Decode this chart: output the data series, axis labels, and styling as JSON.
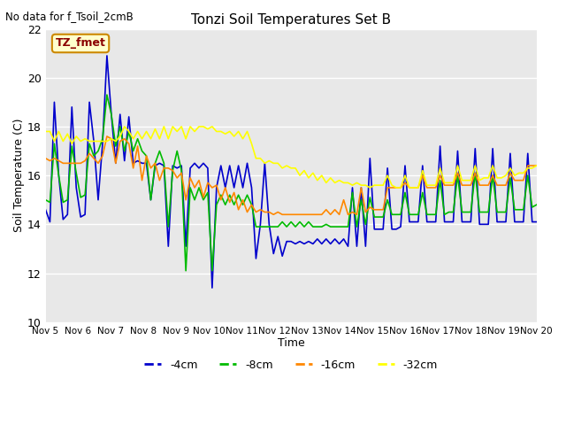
{
  "title": "Tonzi Soil Temperatures Set B",
  "subtitle": "No data for f_Tsoil_2cmB",
  "xlabel": "Time",
  "ylabel": "Soil Temperature (C)",
  "ylim": [
    10,
    22
  ],
  "yticks": [
    10,
    12,
    14,
    16,
    18,
    20,
    22
  ],
  "xtick_labels": [
    "Nov 5",
    "Nov 6",
    "Nov 7",
    "Nov 8",
    "Nov 9",
    "Nov 10",
    "Nov 11",
    "Nov 12",
    "Nov 13",
    "Nov 14",
    "Nov 15",
    "Nov 16",
    "Nov 17",
    "Nov 18",
    "Nov 19",
    "Nov 20"
  ],
  "legend_label": "TZ_fmet",
  "bg_color": "#e8e8e8",
  "plot_bg_color": "#e8e8e8",
  "line_colors": {
    "-4cm": "#0000cc",
    "-8cm": "#00bb00",
    "-16cm": "#ff8800",
    "-32cm": "#ffff00"
  },
  "series": {
    "-4cm": [
      14.6,
      14.1,
      19.0,
      16.0,
      14.2,
      14.4,
      18.8,
      15.5,
      14.3,
      14.4,
      19.0,
      17.4,
      15.0,
      17.3,
      20.9,
      18.5,
      16.5,
      18.5,
      16.6,
      18.4,
      16.5,
      16.6,
      16.5,
      16.5,
      15.0,
      16.4,
      16.5,
      16.4,
      13.1,
      16.4,
      16.3,
      16.4,
      13.1,
      16.3,
      16.5,
      16.3,
      16.5,
      16.3,
      11.4,
      15.5,
      16.4,
      15.5,
      16.4,
      15.5,
      16.4,
      15.5,
      16.5,
      15.5,
      12.6,
      14.0,
      16.5,
      14.0,
      12.8,
      13.5,
      12.7,
      13.3,
      13.3,
      13.2,
      13.3,
      13.2,
      13.3,
      13.2,
      13.4,
      13.2,
      13.4,
      13.2,
      13.4,
      13.2,
      13.4,
      13.1,
      15.5,
      13.1,
      15.5,
      13.1,
      16.7,
      13.8,
      13.8,
      13.8,
      16.3,
      13.8,
      13.8,
      13.9,
      16.4,
      14.1,
      14.1,
      14.1,
      16.4,
      14.1,
      14.1,
      14.1,
      17.2,
      14.1,
      14.1,
      14.1,
      17.0,
      14.1,
      14.1,
      14.1,
      17.1,
      14.0,
      14.0,
      14.0,
      17.1,
      14.1,
      14.1,
      14.1,
      16.9,
      14.1,
      14.1,
      14.1,
      16.9,
      14.1,
      14.1
    ],
    "-8cm": [
      15.0,
      14.9,
      17.3,
      16.0,
      14.9,
      15.0,
      17.2,
      16.1,
      15.1,
      15.2,
      17.3,
      16.8,
      17.0,
      17.5,
      19.3,
      18.5,
      17.2,
      18.0,
      17.0,
      17.8,
      17.0,
      17.5,
      17.0,
      16.8,
      15.0,
      16.5,
      17.0,
      16.5,
      13.9,
      16.2,
      17.0,
      16.2,
      12.1,
      15.5,
      15.0,
      15.5,
      15.0,
      15.3,
      12.1,
      14.8,
      15.2,
      14.8,
      15.2,
      14.8,
      15.2,
      14.8,
      15.2,
      14.8,
      13.9,
      13.9,
      13.9,
      13.9,
      13.9,
      13.9,
      14.1,
      13.9,
      14.1,
      13.9,
      14.1,
      13.9,
      14.1,
      13.9,
      13.9,
      13.9,
      14.0,
      13.9,
      13.9,
      13.9,
      13.9,
      13.9,
      15.3,
      13.9,
      15.0,
      14.0,
      15.1,
      14.3,
      14.3,
      14.3,
      15.0,
      14.4,
      14.4,
      14.4,
      15.3,
      14.4,
      14.4,
      14.4,
      15.3,
      14.4,
      14.4,
      14.4,
      15.8,
      14.4,
      14.5,
      14.5,
      16.0,
      14.5,
      14.5,
      14.5,
      16.1,
      14.5,
      14.5,
      14.5,
      16.0,
      14.5,
      14.5,
      14.5,
      15.9,
      14.6,
      14.6,
      14.6,
      16.0,
      14.7,
      14.8
    ],
    "-16cm": [
      16.7,
      16.6,
      16.7,
      16.6,
      16.5,
      16.5,
      16.5,
      16.5,
      16.5,
      16.6,
      16.9,
      16.7,
      16.5,
      16.8,
      17.6,
      17.5,
      16.5,
      17.4,
      17.5,
      17.3,
      16.3,
      17.2,
      15.8,
      16.8,
      16.3,
      16.5,
      15.8,
      16.3,
      16.3,
      16.2,
      15.9,
      16.1,
      15.0,
      15.9,
      15.5,
      15.8,
      15.1,
      15.7,
      15.5,
      15.6,
      15.0,
      15.5,
      14.9,
      15.3,
      14.6,
      15.0,
      14.5,
      14.8,
      14.5,
      14.6,
      14.5,
      14.5,
      14.4,
      14.5,
      14.4,
      14.4,
      14.4,
      14.4,
      14.4,
      14.4,
      14.4,
      14.4,
      14.4,
      14.4,
      14.6,
      14.4,
      14.6,
      14.4,
      15.0,
      14.4,
      14.5,
      14.4,
      15.5,
      14.5,
      14.7,
      14.6,
      14.6,
      14.6,
      15.5,
      15.5,
      15.5,
      15.5,
      15.7,
      15.5,
      15.5,
      15.5,
      16.0,
      15.5,
      15.5,
      15.5,
      16.0,
      15.6,
      15.6,
      15.6,
      16.1,
      15.6,
      15.6,
      15.6,
      16.1,
      15.6,
      15.6,
      15.6,
      16.0,
      15.6,
      15.6,
      15.6,
      16.1,
      15.8,
      15.8,
      15.8,
      16.4,
      16.4,
      16.4
    ],
    "-32cm": [
      17.8,
      17.8,
      17.4,
      17.8,
      17.4,
      17.7,
      17.3,
      17.6,
      17.4,
      17.5,
      17.4,
      17.4,
      17.4,
      17.4,
      17.4,
      17.5,
      17.4,
      17.6,
      18.0,
      17.8,
      17.5,
      17.8,
      17.5,
      17.8,
      17.5,
      17.9,
      17.5,
      18.0,
      17.5,
      18.0,
      17.8,
      18.0,
      17.5,
      18.0,
      17.8,
      18.0,
      18.0,
      17.9,
      18.0,
      17.8,
      17.8,
      17.7,
      17.8,
      17.6,
      17.8,
      17.5,
      17.8,
      17.3,
      16.7,
      16.7,
      16.5,
      16.6,
      16.5,
      16.5,
      16.3,
      16.4,
      16.3,
      16.3,
      16.0,
      16.2,
      15.9,
      16.1,
      15.8,
      16.0,
      15.7,
      15.9,
      15.7,
      15.8,
      15.7,
      15.7,
      15.6,
      15.7,
      15.6,
      15.6,
      15.5,
      15.6,
      15.6,
      15.6,
      16.0,
      15.6,
      15.5,
      15.5,
      16.0,
      15.5,
      15.5,
      15.5,
      16.2,
      15.6,
      15.6,
      15.6,
      16.3,
      15.7,
      15.7,
      15.7,
      16.4,
      15.8,
      15.8,
      15.8,
      16.4,
      15.8,
      15.9,
      15.9,
      16.4,
      15.9,
      15.9,
      16.0,
      16.3,
      16.0,
      16.1,
      16.1,
      16.3,
      16.3,
      16.4
    ]
  }
}
